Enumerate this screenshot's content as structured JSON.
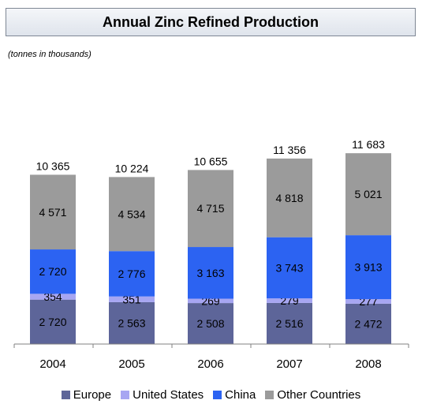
{
  "header": {
    "title": "Annual Zinc Refined Production"
  },
  "subtitle": "(tonnes in thousands)",
  "chart_data": {
    "type": "bar",
    "stacked": true,
    "categories": [
      "2004",
      "2005",
      "2006",
      "2007",
      "2008"
    ],
    "series": [
      {
        "name": "Europe",
        "color": "#5d6599",
        "values": [
          2720,
          2563,
          2508,
          2516,
          2472
        ],
        "labels": [
          "2 720",
          "2 563",
          "2 508",
          "2 516",
          "2 472"
        ]
      },
      {
        "name": "United States",
        "color": "#a7a6f2",
        "values": [
          354,
          351,
          269,
          279,
          277
        ],
        "labels": [
          "354",
          "351",
          "269",
          "279",
          "277"
        ]
      },
      {
        "name": "China",
        "color": "#2c63f2",
        "values": [
          2720,
          2776,
          3163,
          3743,
          3913
        ],
        "labels": [
          "2 720",
          "2 776",
          "3 163",
          "3 743",
          "3 913"
        ]
      },
      {
        "name": "Other Countries",
        "color": "#9b9b9b",
        "values": [
          4571,
          4534,
          4715,
          4818,
          5021
        ],
        "labels": [
          "4 571",
          "4 534",
          "4 715",
          "4 818",
          "5 021"
        ]
      }
    ],
    "totals": [
      10365,
      10224,
      10655,
      11356,
      11683
    ],
    "total_labels": [
      "10 365",
      "10 224",
      "10 655",
      "11 356",
      "11 683"
    ],
    "ylim": [
      0,
      14000
    ],
    "grid": false,
    "legend_position": "bottom"
  }
}
